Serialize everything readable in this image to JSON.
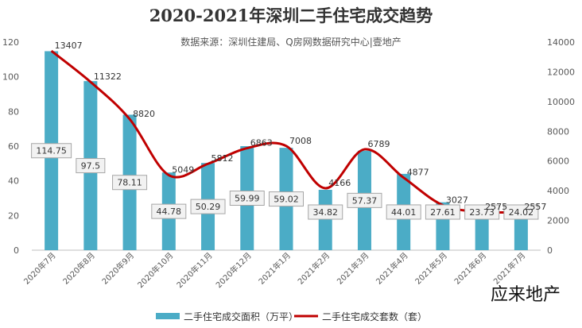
{
  "chart_data": {
    "type": "bar",
    "title": "2020-2021年深圳二手住宅成交趋势",
    "subtitle": "数据来源：深圳住建局、Q房网数据研究中心|壹地产",
    "categories": [
      "2020年7月",
      "2020年8月",
      "2020年9月",
      "2020年10月",
      "2020年11月",
      "2020年12月",
      "2021年1月",
      "2021年2月",
      "2021年3月",
      "2021年4月",
      "2021年5月",
      "2021年6月",
      "2021年7月"
    ],
    "series": [
      {
        "name": "二手住宅成交面积（万平）",
        "type": "bar",
        "axis": "left",
        "color": "#4bacc6",
        "values": [
          114.75,
          97.5,
          78.11,
          44.78,
          50.29,
          59.99,
          59.02,
          34.82,
          57.37,
          44.01,
          27.61,
          23.73,
          24.02
        ]
      },
      {
        "name": "二手住宅成交套数（套）",
        "type": "line",
        "axis": "right",
        "color": "#c00000",
        "values": [
          13407,
          11322,
          8820,
          5049,
          5812,
          6863,
          7008,
          4166,
          6789,
          4877,
          3027,
          2575,
          2557
        ]
      }
    ],
    "y_left": {
      "min": 0,
      "max": 120,
      "ticks": [
        "0",
        "20",
        "40",
        "60",
        "80",
        "100",
        "120"
      ]
    },
    "y_right": {
      "min": 0,
      "max": 14000,
      "ticks": [
        "0",
        "2000",
        "4000",
        "6000",
        "8000",
        "10000",
        "12000",
        "14000"
      ]
    },
    "grid": false,
    "legend_position": "bottom"
  },
  "watermark": "应来地产"
}
